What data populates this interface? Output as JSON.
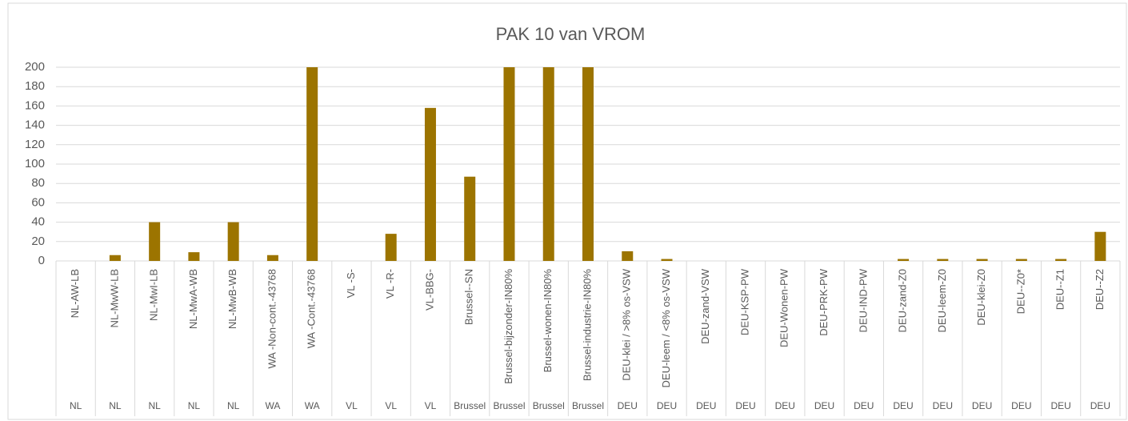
{
  "chart_data": {
    "type": "bar",
    "title": "PAK 10 van VROM",
    "categories": [
      "NL-AW-LB",
      "NL-MwW-LB",
      "NL-MwI-LB",
      "NL-MwA-WB",
      "NL-MwB-WB",
      "WA -Non-cont.-43768",
      "WA -Cont.-43768",
      "VL -S-",
      "VL -R-",
      "VL-BBG-",
      "Brussel--SN",
      "Brussel-bijzonder-IN80%",
      "Brussel-wonen-IN80%",
      "Brussel-industrie-IN80%",
      "DEU-klei / >8% os-VSW",
      "DEU-leem / <8% os-VSW",
      "DEU-zand-VSW",
      "DEU-KSP-PW",
      "DEU-Wonen-PW",
      "DEU-PRK-PW",
      "DEU-IND-PW",
      "DEU-zand-Z0",
      "DEU-leem-Z0",
      "DEU-klei-Z0",
      "DEU--Z0*",
      "DEU--Z1",
      "DEU--Z2"
    ],
    "groups": [
      "NL",
      "NL",
      "NL",
      "NL",
      "NL",
      "WA",
      "WA",
      "VL",
      "VL",
      "VL",
      "Brussel",
      "Brussel",
      "Brussel",
      "Brussel",
      "DEU",
      "DEU",
      "DEU",
      "DEU",
      "DEU",
      "DEU",
      "DEU",
      "DEU",
      "DEU",
      "DEU",
      "DEU",
      "DEU",
      "DEU"
    ],
    "values": [
      0,
      6,
      40,
      9,
      40,
      6,
      200,
      0,
      28,
      158,
      87,
      200,
      200,
      200,
      10,
      2,
      0,
      0,
      0,
      0,
      0,
      2,
      2,
      2,
      2,
      2,
      30
    ],
    "color": "#9c7400",
    "ylim": [
      0,
      200
    ],
    "yticks": [
      0,
      20,
      40,
      60,
      80,
      100,
      120,
      140,
      160,
      180,
      200
    ],
    "grid": true
  }
}
